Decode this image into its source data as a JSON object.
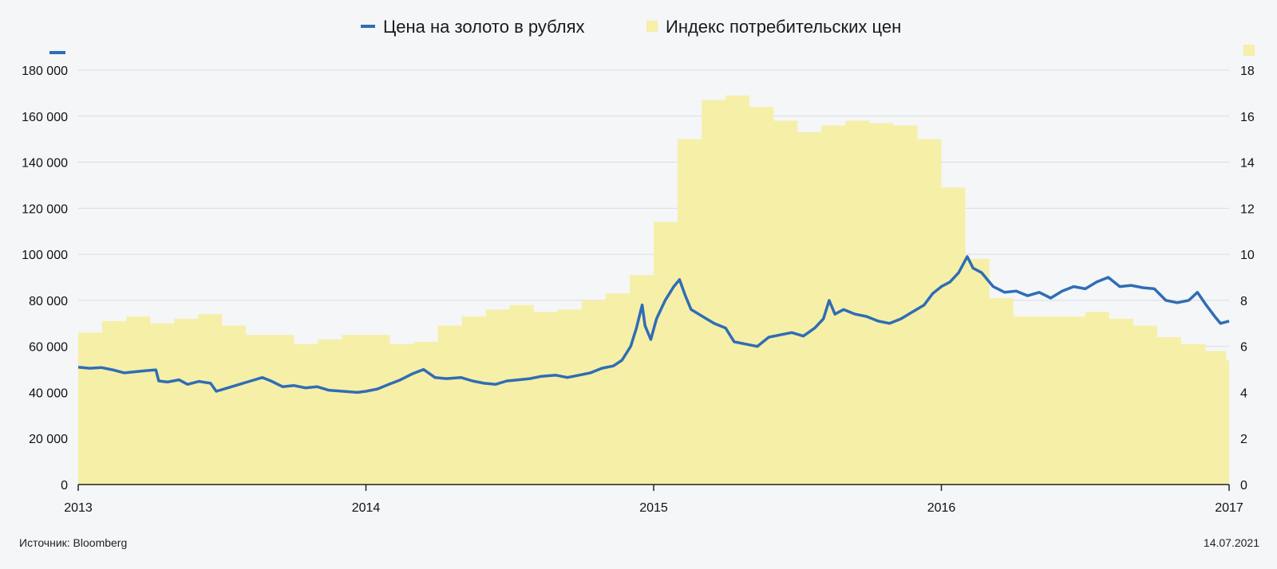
{
  "chart_data": {
    "type": "line+area",
    "title": "",
    "legend": {
      "placement": "top-center",
      "gold_label": "Цена на золото в рублях",
      "cpi_label": "Индекс потребительских цен"
    },
    "colors": {
      "gold": "#2f6db5",
      "cpi": "#f6efa8",
      "grid": "#d9dde2",
      "axis": "#222222"
    },
    "x_axis": {
      "ticks": [
        "2013",
        "2014",
        "2015",
        "2016",
        "2017"
      ],
      "range": [
        2013,
        2017
      ]
    },
    "y_left": {
      "range": [
        0,
        180000
      ],
      "ticks": [
        "0",
        "20 000",
        "40 000",
        "60 000",
        "80 000",
        "100 000",
        "120 000",
        "140 000",
        "160 000",
        "180 000"
      ]
    },
    "y_right": {
      "range": [
        0,
        18
      ],
      "ticks": [
        "0",
        "2",
        "4",
        "6",
        "8",
        "10",
        "12",
        "14",
        "16",
        "18"
      ]
    },
    "grid": true,
    "series": [
      {
        "name": "Индекс потребительских цен",
        "kind": "step-area",
        "axis": "right",
        "points": [
          [
            2013.0,
            6.6
          ],
          [
            2013.083,
            7.1
          ],
          [
            2013.167,
            7.3
          ],
          [
            2013.25,
            7.0
          ],
          [
            2013.333,
            7.2
          ],
          [
            2013.417,
            7.4
          ],
          [
            2013.5,
            6.9
          ],
          [
            2013.583,
            6.5
          ],
          [
            2013.667,
            6.5
          ],
          [
            2013.75,
            6.1
          ],
          [
            2013.833,
            6.3
          ],
          [
            2013.917,
            6.5
          ],
          [
            2014.0,
            6.5
          ],
          [
            2014.083,
            6.1
          ],
          [
            2014.167,
            6.2
          ],
          [
            2014.25,
            6.9
          ],
          [
            2014.333,
            7.3
          ],
          [
            2014.417,
            7.6
          ],
          [
            2014.5,
            7.8
          ],
          [
            2014.583,
            7.5
          ],
          [
            2014.667,
            7.6
          ],
          [
            2014.75,
            8.0
          ],
          [
            2014.833,
            8.3
          ],
          [
            2014.917,
            9.1
          ],
          [
            2015.0,
            11.4
          ],
          [
            2015.083,
            15.0
          ],
          [
            2015.167,
            16.7
          ],
          [
            2015.25,
            16.9
          ],
          [
            2015.333,
            16.4
          ],
          [
            2015.417,
            15.8
          ],
          [
            2015.5,
            15.3
          ],
          [
            2015.583,
            15.6
          ],
          [
            2015.667,
            15.8
          ],
          [
            2015.75,
            15.7
          ],
          [
            2015.833,
            15.6
          ],
          [
            2015.917,
            15.0
          ],
          [
            2016.0,
            12.9
          ],
          [
            2016.083,
            9.8
          ],
          [
            2016.167,
            8.1
          ],
          [
            2016.25,
            7.3
          ],
          [
            2016.333,
            7.3
          ],
          [
            2016.417,
            7.3
          ],
          [
            2016.5,
            7.5
          ],
          [
            2016.583,
            7.2
          ],
          [
            2016.667,
            6.9
          ],
          [
            2016.75,
            6.4
          ],
          [
            2016.833,
            6.1
          ],
          [
            2016.917,
            5.8
          ],
          [
            2016.99,
            5.4
          ]
        ]
      },
      {
        "name": "Цена на золото в рублях",
        "kind": "line",
        "axis": "left",
        "points": [
          [
            2013.0,
            51000
          ],
          [
            2013.04,
            50500
          ],
          [
            2013.08,
            50800
          ],
          [
            2013.12,
            49800
          ],
          [
            2013.16,
            48500
          ],
          [
            2013.2,
            49000
          ],
          [
            2013.24,
            49500
          ],
          [
            2013.27,
            49800
          ],
          [
            2013.28,
            45000
          ],
          [
            2013.31,
            44500
          ],
          [
            2013.35,
            45500
          ],
          [
            2013.38,
            43500
          ],
          [
            2013.42,
            44800
          ],
          [
            2013.46,
            44000
          ],
          [
            2013.48,
            40500
          ],
          [
            2013.52,
            42000
          ],
          [
            2013.56,
            43500
          ],
          [
            2013.6,
            45000
          ],
          [
            2013.64,
            46500
          ],
          [
            2013.67,
            45000
          ],
          [
            2013.71,
            42500
          ],
          [
            2013.75,
            43000
          ],
          [
            2013.79,
            42000
          ],
          [
            2013.83,
            42500
          ],
          [
            2013.87,
            41000
          ],
          [
            2013.92,
            40500
          ],
          [
            2013.97,
            40000
          ],
          [
            2014.0,
            40500
          ],
          [
            2014.04,
            41500
          ],
          [
            2014.08,
            43500
          ],
          [
            2014.12,
            45500
          ],
          [
            2014.16,
            48000
          ],
          [
            2014.2,
            50000
          ],
          [
            2014.24,
            46500
          ],
          [
            2014.28,
            46000
          ],
          [
            2014.33,
            46500
          ],
          [
            2014.37,
            45000
          ],
          [
            2014.41,
            44000
          ],
          [
            2014.45,
            43500
          ],
          [
            2014.49,
            45000
          ],
          [
            2014.53,
            45500
          ],
          [
            2014.57,
            46000
          ],
          [
            2014.61,
            47000
          ],
          [
            2014.66,
            47500
          ],
          [
            2014.7,
            46500
          ],
          [
            2014.74,
            47500
          ],
          [
            2014.78,
            48500
          ],
          [
            2014.82,
            50500
          ],
          [
            2014.86,
            51500
          ],
          [
            2014.89,
            54000
          ],
          [
            2014.92,
            60000
          ],
          [
            2014.94,
            68000
          ],
          [
            2014.96,
            78000
          ],
          [
            2014.97,
            69000
          ],
          [
            2014.99,
            63000
          ],
          [
            2015.01,
            72000
          ],
          [
            2015.04,
            80000
          ],
          [
            2015.07,
            86000
          ],
          [
            2015.09,
            89000
          ],
          [
            2015.11,
            82000
          ],
          [
            2015.13,
            76000
          ],
          [
            2015.17,
            73000
          ],
          [
            2015.21,
            70000
          ],
          [
            2015.25,
            68000
          ],
          [
            2015.28,
            62000
          ],
          [
            2015.32,
            61000
          ],
          [
            2015.36,
            60000
          ],
          [
            2015.4,
            64000
          ],
          [
            2015.44,
            65000
          ],
          [
            2015.48,
            66000
          ],
          [
            2015.52,
            64500
          ],
          [
            2015.56,
            68000
          ],
          [
            2015.59,
            72000
          ],
          [
            2015.61,
            80000
          ],
          [
            2015.63,
            74000
          ],
          [
            2015.66,
            76000
          ],
          [
            2015.7,
            74000
          ],
          [
            2015.74,
            73000
          ],
          [
            2015.78,
            71000
          ],
          [
            2015.82,
            70000
          ],
          [
            2015.86,
            72000
          ],
          [
            2015.9,
            75000
          ],
          [
            2015.94,
            78000
          ],
          [
            2015.97,
            83000
          ],
          [
            2016.0,
            86000
          ],
          [
            2016.03,
            88000
          ],
          [
            2016.06,
            92000
          ],
          [
            2016.09,
            99000
          ],
          [
            2016.11,
            94000
          ],
          [
            2016.14,
            92000
          ],
          [
            2016.18,
            86000
          ],
          [
            2016.22,
            83500
          ],
          [
            2016.26,
            84000
          ],
          [
            2016.3,
            82000
          ],
          [
            2016.34,
            83500
          ],
          [
            2016.38,
            81000
          ],
          [
            2016.42,
            84000
          ],
          [
            2016.46,
            86000
          ],
          [
            2016.5,
            85000
          ],
          [
            2016.54,
            88000
          ],
          [
            2016.58,
            90000
          ],
          [
            2016.62,
            86000
          ],
          [
            2016.66,
            86500
          ],
          [
            2016.7,
            85500
          ],
          [
            2016.74,
            85000
          ],
          [
            2016.78,
            80000
          ],
          [
            2016.82,
            79000
          ],
          [
            2016.86,
            80000
          ],
          [
            2016.89,
            83500
          ],
          [
            2016.92,
            78000
          ],
          [
            2016.95,
            73000
          ],
          [
            2016.97,
            70000
          ],
          [
            2017.0,
            71000
          ]
        ]
      }
    ]
  },
  "footer": {
    "source": "Источник: Bloomberg",
    "date": "14.07.2021"
  }
}
